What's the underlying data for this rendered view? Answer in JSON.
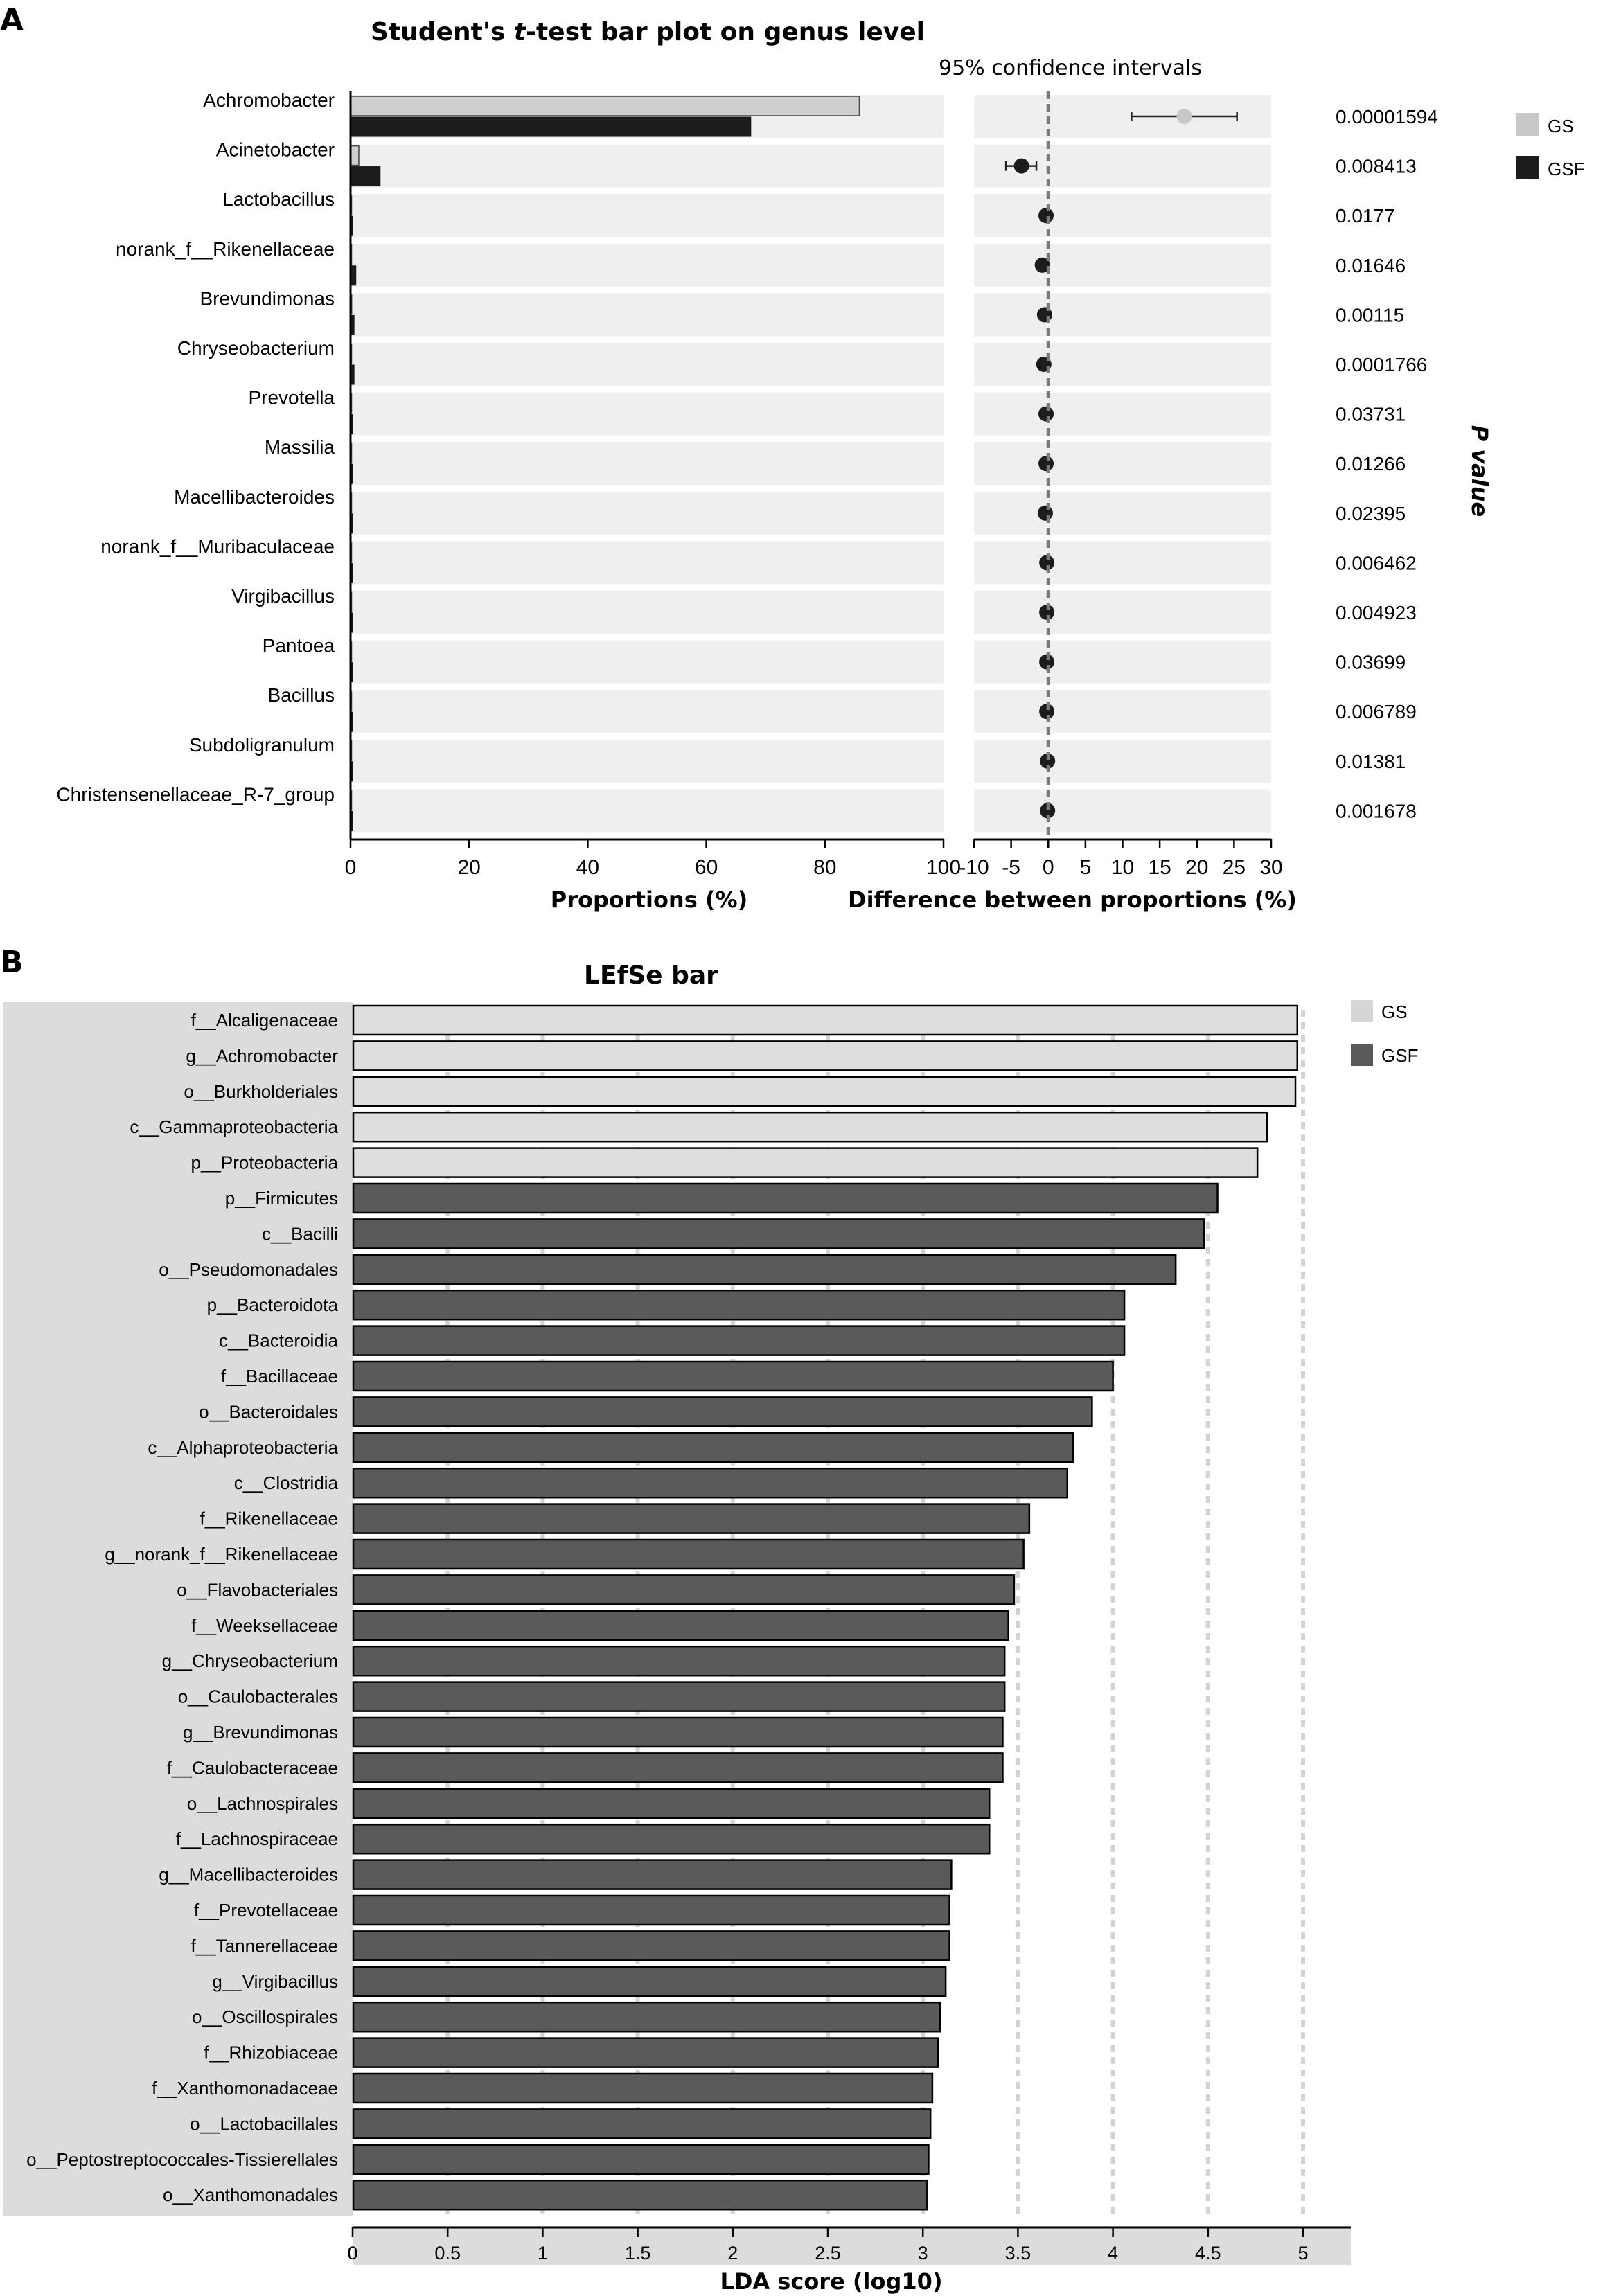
{
  "chart_data": [
    {
      "panel": "A",
      "type": "bar",
      "title_pre": "Student's ",
      "title_italic": "t",
      "title_post": "-test bar plot on genus level",
      "ci_title": "95% confidence intervals",
      "xlabel_left": "Proportions (%)",
      "xlabel_right": "Difference between proportions (%)",
      "pvalue_label": "P value",
      "xlim_left": [
        0,
        100
      ],
      "xticks_left": [
        "0",
        "20",
        "40",
        "60",
        "80",
        "100"
      ],
      "xlim_right": [
        -10,
        30
      ],
      "xticks_right": [
        "-10",
        "-5",
        "0",
        "5",
        "10",
        "15",
        "20",
        "25",
        "30"
      ],
      "legend": [
        {
          "name": "GS",
          "color": "#c8c8c8"
        },
        {
          "name": "GSF",
          "color": "#1c1c1c"
        }
      ],
      "categories": [
        "Achromobacter",
        "Acinetobacter",
        "Lactobacillus",
        "norank_f__Rikenellaceae",
        "Brevundimonas",
        "Chryseobacterium",
        "Prevotella",
        "Massilia",
        "Macellibacteroides",
        "norank_f__Muribaculaceae",
        "Virgibacillus",
        "Pantoea",
        "Bacillus",
        "Subdoligranulum",
        "Christensenellaceae_R-7_group"
      ],
      "series": [
        {
          "name": "GS",
          "values": [
            85.8,
            1.4,
            0.1,
            0.1,
            0.2,
            0.1,
            0.1,
            0.1,
            0.1,
            0.1,
            0.1,
            0.1,
            0.1,
            0.1,
            0.1
          ]
        },
        {
          "name": "GSF",
          "values": [
            67.5,
            5.0,
            0.4,
            0.9,
            0.6,
            0.6,
            0.3,
            0.3,
            0.4,
            0.2,
            0.2,
            0.2,
            0.2,
            0.1,
            0.1
          ]
        }
      ],
      "difference": [
        {
          "mean": 18.3,
          "low": 11.2,
          "high": 25.4,
          "group": "GS"
        },
        {
          "mean": -3.6,
          "low": -5.7,
          "high": -1.6,
          "group": "GSF"
        },
        {
          "mean": -0.3,
          "low": -0.4,
          "high": -0.2,
          "group": "GSF"
        },
        {
          "mean": -0.8,
          "low": -1.0,
          "high": -0.6,
          "group": "GSF"
        },
        {
          "mean": -0.5,
          "low": -0.6,
          "high": -0.4,
          "group": "GSF"
        },
        {
          "mean": -0.6,
          "low": -0.7,
          "high": -0.5,
          "group": "GSF"
        },
        {
          "mean": -0.3,
          "low": -0.4,
          "high": -0.2,
          "group": "GSF"
        },
        {
          "mean": -0.3,
          "low": -0.4,
          "high": -0.2,
          "group": "GSF"
        },
        {
          "mean": -0.4,
          "low": -0.5,
          "high": -0.3,
          "group": "GSF"
        },
        {
          "mean": -0.2,
          "low": -0.3,
          "high": -0.1,
          "group": "GSF"
        },
        {
          "mean": -0.2,
          "low": -0.3,
          "high": -0.1,
          "group": "GSF"
        },
        {
          "mean": -0.2,
          "low": -0.3,
          "high": -0.1,
          "group": "GSF"
        },
        {
          "mean": -0.2,
          "low": -0.3,
          "high": -0.1,
          "group": "GSF"
        },
        {
          "mean": -0.1,
          "low": -0.2,
          "high": 0.0,
          "group": "GSF"
        },
        {
          "mean": -0.1,
          "low": -0.2,
          "high": 0.0,
          "group": "GSF"
        }
      ],
      "p_values": [
        "0.00001594",
        "0.008413",
        "0.0177",
        "0.01646",
        "0.00115",
        "0.0001766",
        "0.03731",
        "0.01266",
        "0.02395",
        "0.006462",
        "0.004923",
        "0.03699",
        "0.006789",
        "0.01381",
        "0.001678"
      ]
    },
    {
      "panel": "B",
      "type": "bar",
      "title": "LEfSe bar",
      "xlabel": "LDA score (log10)",
      "xlim": [
        0,
        5
      ],
      "xticks": [
        "0",
        "0.5",
        "1",
        "1.5",
        "2",
        "2.5",
        "3",
        "3.5",
        "4",
        "4.5",
        "5"
      ],
      "legend": [
        {
          "name": "GS",
          "color": "#d6d6d6"
        },
        {
          "name": "GSF",
          "color": "#5a5a5a"
        }
      ],
      "categories": [
        "f__Alcaligenaceae",
        "g__Achromobacter",
        "o__Burkholderiales",
        "c__Gammaproteobacteria",
        "p__Proteobacteria",
        "p__Firmicutes",
        "c__Bacilli",
        "o__Pseudomonadales",
        "p__Bacteroidota",
        "c__Bacteroidia",
        "f__Bacillaceae",
        "o__Bacteroidales",
        "c__Alphaproteobacteria",
        "c__Clostridia",
        "f__Rikenellaceae",
        "g__norank_f__Rikenellaceae",
        "o__Flavobacteriales",
        "f__Weeksellaceae",
        "g__Chryseobacterium",
        "o__Caulobacterales",
        "g__Brevundimonas",
        "f__Caulobacteraceae",
        "o__Lachnospirales",
        "f__Lachnospiraceae",
        "g__Macellibacteroides",
        "f__Prevotellaceae",
        "f__Tannerellaceae",
        "g__Virgibacillus",
        "o__Oscillospirales",
        "f__Rhizobiaceae",
        "f__Xanthomonadaceae",
        "o__Lactobacillales",
        "o__Peptostreptococcales-Tissierellales",
        "o__Xanthomonadales"
      ],
      "values": [
        4.97,
        4.97,
        4.96,
        4.81,
        4.76,
        4.55,
        4.48,
        4.33,
        4.06,
        4.06,
        4.0,
        3.89,
        3.79,
        3.76,
        3.56,
        3.53,
        3.48,
        3.45,
        3.43,
        3.43,
        3.42,
        3.42,
        3.35,
        3.35,
        3.15,
        3.14,
        3.14,
        3.12,
        3.09,
        3.08,
        3.05,
        3.04,
        3.03,
        3.02
      ],
      "groups": [
        "GS",
        "GS",
        "GS",
        "GS",
        "GS",
        "GSF",
        "GSF",
        "GSF",
        "GSF",
        "GSF",
        "GSF",
        "GSF",
        "GSF",
        "GSF",
        "GSF",
        "GSF",
        "GSF",
        "GSF",
        "GSF",
        "GSF",
        "GSF",
        "GSF",
        "GSF",
        "GSF",
        "GSF",
        "GSF",
        "GSF",
        "GSF",
        "GSF",
        "GSF",
        "GSF",
        "GSF",
        "GSF",
        "GSF"
      ]
    }
  ],
  "panel_a_label": "A",
  "panel_b_label": "B"
}
